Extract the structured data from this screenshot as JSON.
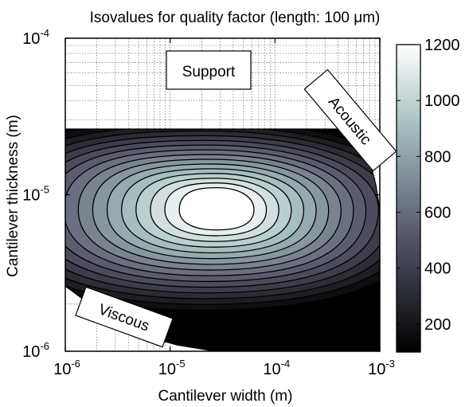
{
  "chart_data": {
    "type": "contour",
    "title": "Isovalues for quality factor (length: 100 μm)",
    "xlabel": "Cantilever width (m)",
    "ylabel": "Cantilever thickness (m)",
    "x_scale": "log",
    "y_scale": "log",
    "xlim": [
      1e-06,
      0.001
    ],
    "ylim": [
      1e-06,
      0.0001
    ],
    "grid": true,
    "x_ticks": [
      {
        "base": "10",
        "exp": "-6"
      },
      {
        "base": "10",
        "exp": "-5"
      },
      {
        "base": "10",
        "exp": "-4"
      },
      {
        "base": "10",
        "exp": "-3"
      }
    ],
    "y_ticks": [
      {
        "base": "10",
        "exp": "-6"
      },
      {
        "base": "10",
        "exp": "-5"
      },
      {
        "base": "10",
        "exp": "-4"
      }
    ],
    "peak": {
      "width": 2e-05,
      "thickness": 8e-06,
      "value": 1200
    },
    "colorbar": {
      "min": 100,
      "max": 1200,
      "ticks": [
        "200",
        "400",
        "600",
        "800",
        "1000",
        "1200"
      ],
      "colormap": "bone"
    },
    "annotations": [
      {
        "name": "support",
        "text": "Support"
      },
      {
        "name": "acoustic",
        "text": "Acoustic"
      },
      {
        "name": "viscous",
        "text": "Viscous"
      }
    ]
  }
}
